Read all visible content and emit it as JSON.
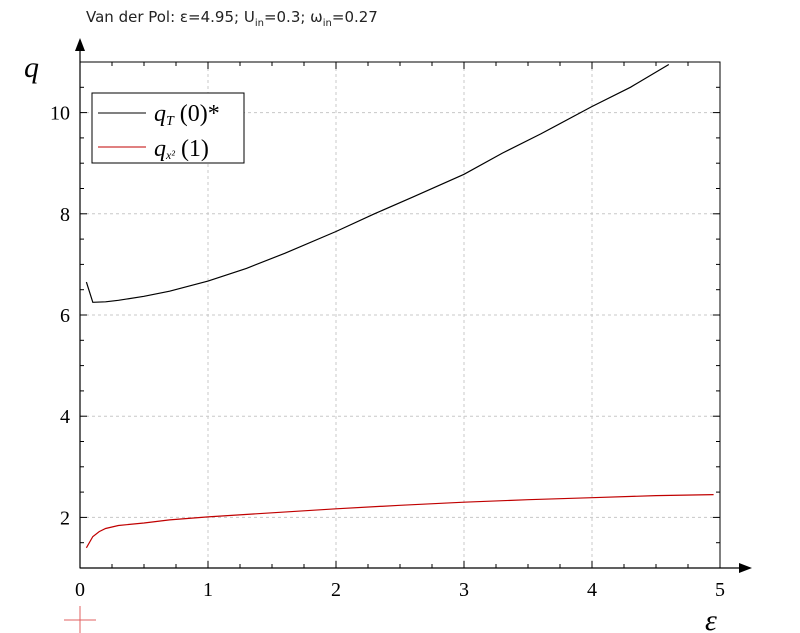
{
  "chart_data": {
    "type": "line",
    "title_parts": {
      "prefix": "Van der Pol: ε=4.95; U",
      "u_sub": "in",
      "mid": "=0.3; ω",
      "w_sub": "in",
      "suffix": "=0.27"
    },
    "xlabel": "ε",
    "ylabel": "q",
    "xlim": [
      0,
      5
    ],
    "ylim": [
      1,
      11
    ],
    "xticks": [
      0,
      1,
      2,
      3,
      4,
      5
    ],
    "yticks": [
      2,
      4,
      6,
      8,
      10
    ],
    "grid": true,
    "legend_position": "top-left",
    "legend": [
      {
        "symbol": "q",
        "sub": "T",
        "suffix": " (0)*",
        "color": "#000000"
      },
      {
        "symbol": "q",
        "sub": "x²",
        "suffix": " (1)",
        "color": "#c00000"
      }
    ],
    "series": [
      {
        "color": "#000000",
        "x": [
          0.05,
          0.1,
          0.2,
          0.3,
          0.5,
          0.7,
          1.0,
          1.3,
          1.6,
          2.0,
          2.3,
          2.6,
          3.0,
          3.3,
          3.6,
          4.0,
          4.3,
          4.6
        ],
        "y": [
          6.65,
          6.25,
          6.26,
          6.29,
          6.37,
          6.47,
          6.67,
          6.92,
          7.22,
          7.65,
          8.0,
          8.33,
          8.78,
          9.2,
          9.58,
          10.12,
          10.5,
          10.95
        ]
      },
      {
        "color": "#c00000",
        "x": [
          0.05,
          0.1,
          0.15,
          0.2,
          0.3,
          0.5,
          0.7,
          1.0,
          1.5,
          2.0,
          2.5,
          3.0,
          3.5,
          4.0,
          4.5,
          4.95
        ],
        "y": [
          1.4,
          1.62,
          1.72,
          1.78,
          1.84,
          1.89,
          1.95,
          2.01,
          2.09,
          2.17,
          2.24,
          2.3,
          2.35,
          2.39,
          2.43,
          2.45
        ]
      }
    ]
  }
}
